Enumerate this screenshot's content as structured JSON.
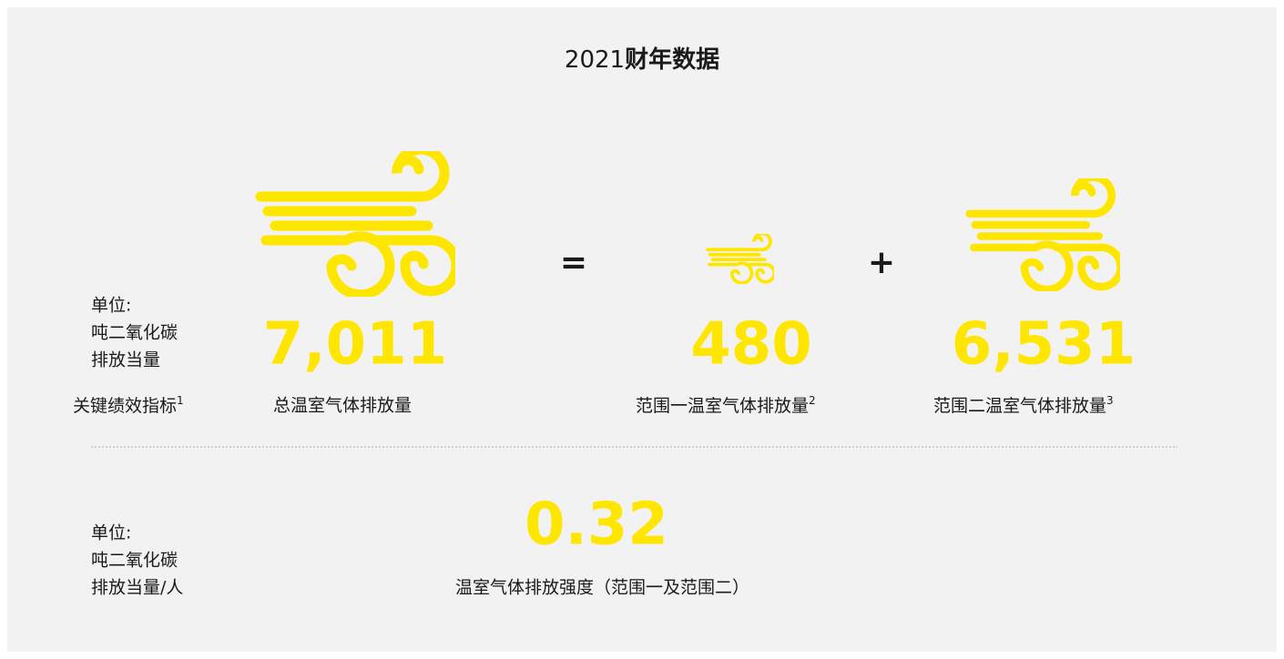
{
  "title": {
    "year": "2021",
    "text": "财年数据"
  },
  "kpi": {
    "unit": [
      "单位:",
      "吨二氧化碳",
      "排放当量"
    ],
    "label": "关键绩效指标",
    "note": "1"
  },
  "operators": {
    "equals": "=",
    "plus": "+"
  },
  "metrics": [
    {
      "value": "7,011",
      "label": "总温室气体排放量"
    },
    {
      "value": "480",
      "label": "范围一温室气体排放量",
      "note": "2"
    },
    {
      "value": "6,531",
      "label": "范围二温室气体排放量",
      "note": "3"
    }
  ],
  "intensity": {
    "unit": [
      "单位:",
      "吨二氧化碳",
      "排放当量/人"
    ],
    "value": "0.32",
    "label": "温室气体排放强度（范围一及范围二）"
  }
}
